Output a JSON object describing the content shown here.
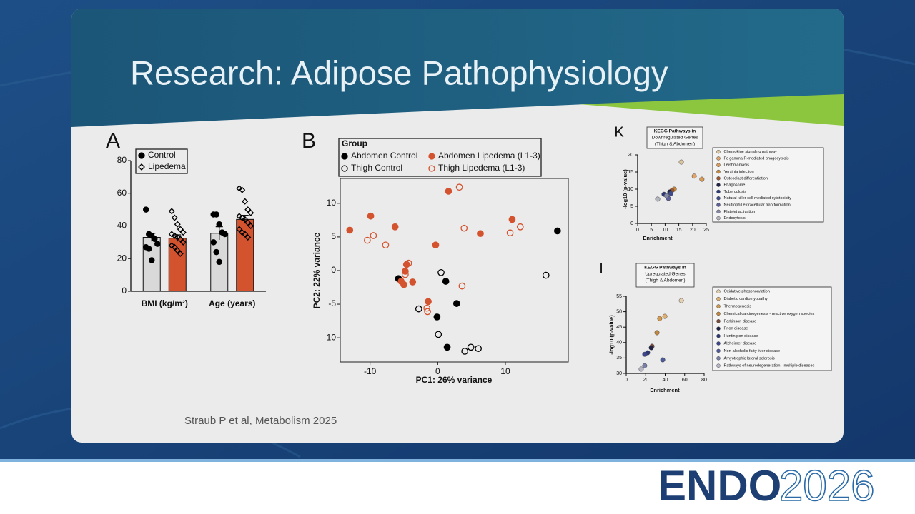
{
  "slide": {
    "title": "Research: Adipose Pathophysiology",
    "citation": "Straub P et al, Metabolism 2025"
  },
  "logo": {
    "brand": "ENDO",
    "year": "2026"
  },
  "chart_data": [
    {
      "type": "bar",
      "panel": "A",
      "categories": [
        "BMI (kg/m²)",
        "Age (years)"
      ],
      "ylim": [
        0,
        80
      ],
      "yticks": [
        0,
        20,
        40,
        60,
        80
      ],
      "series": [
        {
          "name": "Control",
          "color": "#d9d9d9",
          "marker": "circle",
          "marker_color": "#000000",
          "filled": true,
          "values": [
            33,
            35.5
          ],
          "errors": [
            2.5,
            4
          ],
          "points": [
            [
              50,
              35,
              34,
              32,
              29,
              27,
              26,
              19
            ],
            [
              47,
              47,
              41,
              36,
              35,
              30,
              24,
              18
            ]
          ]
        },
        {
          "name": "Lipedema",
          "color": "#d4532f",
          "marker": "diamond",
          "marker_color": "#000000",
          "filled": false,
          "values": [
            32.5,
            44
          ],
          "errors": [
            2,
            2.5
          ],
          "points": [
            [
              49,
              45,
              41,
              38,
              36,
              35,
              34,
              33,
              32,
              30,
              28,
              27,
              25,
              23
            ],
            [
              63,
              62,
              55,
              50,
              48,
              46,
              45,
              44,
              42,
              40,
              38,
              36,
              35,
              33
            ]
          ]
        }
      ]
    },
    {
      "type": "scatter",
      "panel": "B",
      "legend_title": "Group",
      "xlabel": "PC1: 26% variance",
      "ylabel": "PC2: 22% variance",
      "xlim": [
        -14.4,
        19.3
      ],
      "ylim": [
        -13.6,
        13.7
      ],
      "xticks": [
        -10,
        0,
        10
      ],
      "yticks": [
        -10,
        -5,
        0,
        5,
        10
      ],
      "series": [
        {
          "name": "Abdomen Control",
          "color": "#000000",
          "marker": "circle",
          "filled": true,
          "x": [
            -5.8,
            1.2,
            2.8,
            -0.1,
            1.4,
            17.7
          ],
          "values": [
            -1.2,
            -1.6,
            -4.9,
            -6.9,
            -11.4,
            5.9
          ]
        },
        {
          "name": "Abdomen Lipedema (L1-3)",
          "color": "#d4532f",
          "marker": "circle",
          "filled": true,
          "x": [
            -13,
            -9.9,
            -6.3,
            1.6,
            -0.3,
            -4.6,
            -4.8,
            -5.4,
            -5,
            -3.7,
            -1.4,
            6.3,
            11
          ],
          "values": [
            6,
            8.1,
            6.5,
            11.8,
            3.8,
            0.9,
            -0.1,
            -1.6,
            -2.1,
            -1.7,
            -4.6,
            5.5,
            7.6
          ]
        },
        {
          "name": "Thigh Control",
          "color": "#000000",
          "marker": "circle",
          "filled": false,
          "x": [
            0.5,
            -2.8,
            0.1,
            4,
            4.9,
            6,
            16
          ],
          "values": [
            -0.3,
            -5.7,
            -9.5,
            -12,
            -11.4,
            -11.6,
            -0.7
          ]
        },
        {
          "name": "Thigh Lipedema (L1-3)",
          "color": "#d4532f",
          "marker": "circle",
          "filled": false,
          "x": [
            3.2,
            -10.4,
            -9.5,
            -7.7,
            -4.3,
            -4.8,
            -1.6,
            -1.5,
            3.6,
            3.9,
            10.7,
            12.2
          ],
          "values": [
            12.4,
            4.5,
            5.2,
            3.8,
            1.1,
            -0.6,
            -5.6,
            -6.1,
            -2.3,
            6.3,
            5.6,
            6.5
          ]
        }
      ]
    },
    {
      "type": "scatter",
      "panel": "K",
      "title": [
        "KEGG Pathways in",
        "Downregulated Genes",
        "(Thigh & Abdomen)"
      ],
      "xlabel": "Enrichment",
      "ylabel": "-log10 (p-value)",
      "xlim": [
        0,
        25
      ],
      "ylim": [
        0,
        20
      ],
      "xticks": [
        0,
        5,
        10,
        15,
        20,
        25
      ],
      "yticks": [
        0,
        5,
        10,
        15,
        20
      ],
      "series": [
        {
          "name": "Chemokine signaling pathway",
          "color": "#dcc6a0",
          "filled": true,
          "x": [
            15.9
          ],
          "values": [
            17.9
          ]
        },
        {
          "name": "Fc gamma R-mediated phagocytosis",
          "color": "#e0a36a",
          "filled": true,
          "x": [
            20.6
          ],
          "values": [
            13.8
          ]
        },
        {
          "name": "Leishmaniasis",
          "color": "#d99a55",
          "filled": true,
          "x": [
            23.4
          ],
          "values": [
            12.9
          ]
        },
        {
          "name": "Yersinia infection",
          "color": "#c9893e",
          "filled": true,
          "x": [
            13.3
          ],
          "values": [
            10
          ]
        },
        {
          "name": "Osteoclast differentiation",
          "color": "#a0562e",
          "filled": true,
          "x": [
            12.5
          ],
          "values": [
            9.6
          ]
        },
        {
          "name": "Phagosome",
          "color": "#1f2147",
          "filled": true,
          "x": [
            11.7
          ],
          "values": [
            9.2
          ]
        },
        {
          "name": "Tuberculosis",
          "color": "#2b3a7a",
          "filled": true,
          "x": [
            9.6
          ],
          "values": [
            8.5
          ]
        },
        {
          "name": "Natural killer cell mediated cytotoxicity",
          "color": "#3d4a8c",
          "filled": true,
          "x": [
            12.1
          ],
          "values": [
            8.7
          ]
        },
        {
          "name": "Neutrophil extracellular trap formation",
          "color": "#5c5f99",
          "filled": true,
          "x": [
            11.2
          ],
          "values": [
            7.3
          ]
        },
        {
          "name": "Platelet activation",
          "color": "#8589a8",
          "filled": true,
          "x": [
            10.5
          ],
          "values": [
            8.1
          ]
        },
        {
          "name": "Endocytosis",
          "color": "#b5b5c0",
          "filled": true,
          "x": [
            7.3
          ],
          "values": [
            7.1
          ]
        }
      ]
    },
    {
      "type": "scatter",
      "panel": "I",
      "title": [
        "KEGG Pathways in",
        "Upregulated Genes",
        "(Thigh & Abdomen)"
      ],
      "xlabel": "Enrichment",
      "ylabel": "-log10 (p-value)",
      "xlim": [
        0,
        80
      ],
      "ylim": [
        30,
        55
      ],
      "xticks": [
        0,
        20,
        40,
        60,
        80
      ],
      "yticks": [
        30,
        35,
        40,
        45,
        50,
        55
      ],
      "series": [
        {
          "name": "Oxidative phosphorylation",
          "color": "#e3d0b0",
          "filled": true,
          "x": [
            56.6
          ],
          "values": [
            53.6
          ]
        },
        {
          "name": "Diabetic cardiomyopathy",
          "color": "#e0b070",
          "filled": true,
          "x": [
            39.7
          ],
          "values": [
            48.5
          ]
        },
        {
          "name": "Thermogenesis",
          "color": "#d19a4f",
          "filled": true,
          "x": [
            34.4
          ],
          "values": [
            47.8
          ]
        },
        {
          "name": "Chemical carcinogenesis - reactive oxygen species",
          "color": "#c4873c",
          "filled": true,
          "x": [
            31.6
          ],
          "values": [
            43.2
          ]
        },
        {
          "name": "Parkinson disease",
          "color": "#7a4a3a",
          "filled": true,
          "x": [
            26.5
          ],
          "values": [
            38.8
          ]
        },
        {
          "name": "Prion disease",
          "color": "#1f2147",
          "filled": true,
          "x": [
            25.7
          ],
          "values": [
            38.3
          ]
        },
        {
          "name": "Huntington disease",
          "color": "#2c3575",
          "filled": true,
          "x": [
            22
          ],
          "values": [
            36.7
          ]
        },
        {
          "name": "Alzheimer disease",
          "color": "#3c4590",
          "filled": true,
          "x": [
            19
          ],
          "values": [
            36.2
          ]
        },
        {
          "name": "Non-alcoholic fatty liver disease",
          "color": "#4e5a9a",
          "filled": true,
          "x": [
            37.5
          ],
          "values": [
            34.4
          ]
        },
        {
          "name": "Amyotrophic lateral sclerosis",
          "color": "#7a7fa8",
          "filled": true,
          "x": [
            19
          ],
          "values": [
            32.5
          ]
        },
        {
          "name": "Pathways of neurodegeneration - multiple diseases",
          "color": "#b7b7c6",
          "filled": true,
          "x": [
            15.4
          ],
          "values": [
            31.4
          ]
        }
      ]
    }
  ]
}
